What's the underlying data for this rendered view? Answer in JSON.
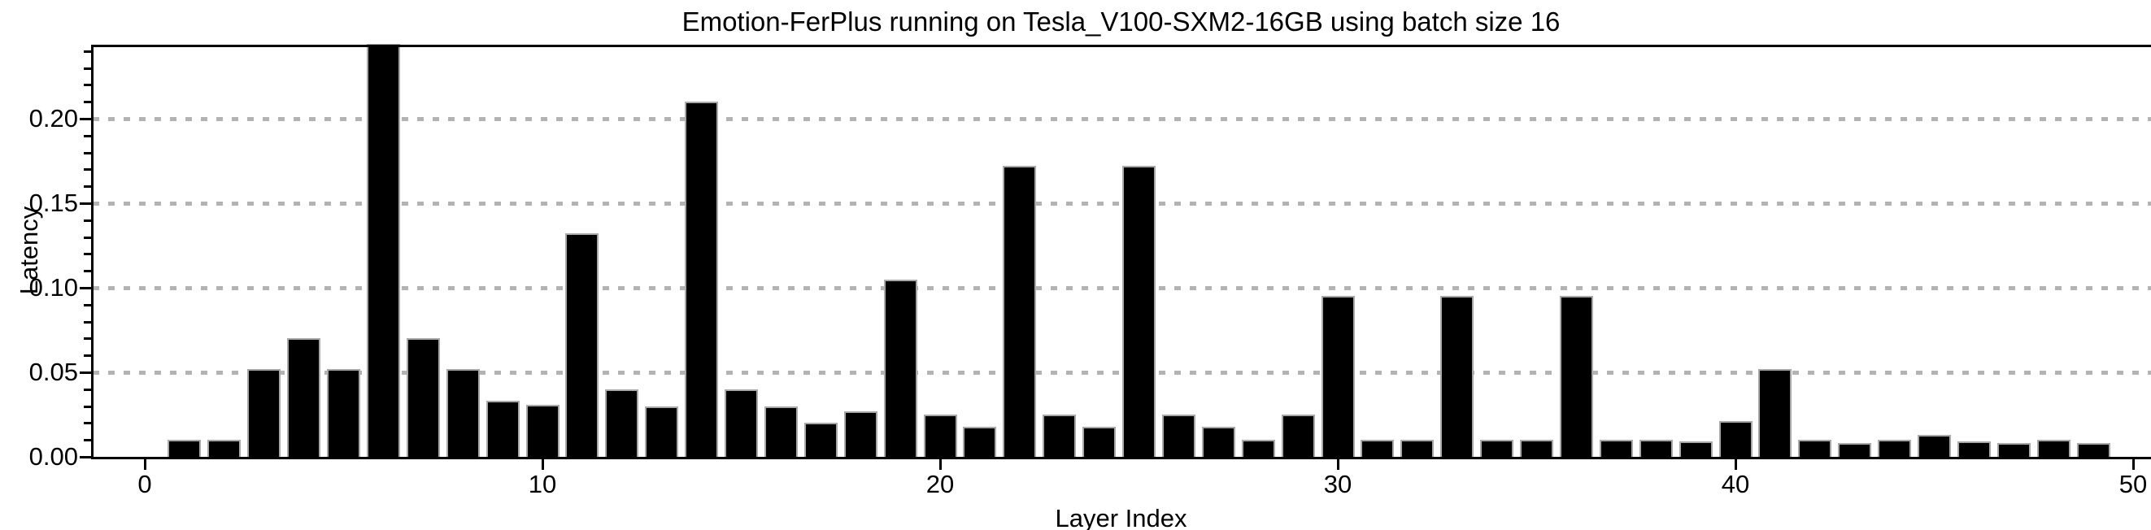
{
  "chart_data": {
    "type": "bar",
    "title": "Emotion-FerPlus running on Tesla_V100-SXM2-16GB using batch size 16",
    "xlabel": "Layer Index",
    "ylabel": "Latency",
    "x_start": 1,
    "x": [
      1,
      2,
      3,
      4,
      5,
      6,
      7,
      8,
      9,
      10,
      11,
      12,
      13,
      14,
      15,
      16,
      17,
      18,
      19,
      20,
      21,
      22,
      23,
      24,
      25,
      26,
      27,
      28,
      29,
      30,
      31,
      32,
      33,
      34,
      35,
      36,
      37,
      38,
      39,
      40,
      41,
      42,
      43,
      44,
      45,
      46,
      47,
      48,
      49
    ],
    "values": [
      0.01,
      0.01,
      0.052,
      0.07,
      0.052,
      0.244,
      0.07,
      0.052,
      0.033,
      0.031,
      0.132,
      0.04,
      0.03,
      0.21,
      0.04,
      0.03,
      0.02,
      0.027,
      0.105,
      0.025,
      0.018,
      0.172,
      0.025,
      0.018,
      0.172,
      0.025,
      0.018,
      0.01,
      0.025,
      0.095,
      0.01,
      0.01,
      0.095,
      0.01,
      0.01,
      0.095,
      0.01,
      0.01,
      0.009,
      0.021,
      0.052,
      0.01,
      0.008,
      0.01,
      0.013,
      0.009,
      0.008,
      0.01,
      0.008
    ],
    "xticks": [
      0,
      10,
      20,
      30,
      40,
      50
    ],
    "xtick_labels": [
      "0",
      "10",
      "20",
      "30",
      "40",
      "50"
    ],
    "yticks": [
      0.0,
      0.05,
      0.1,
      0.15,
      0.2
    ],
    "ytick_labels": [
      "0.00",
      "0.05",
      "0.10",
      "0.15",
      "0.20"
    ],
    "y_minor_tick_step": 0.01,
    "gridlines_at": [
      0.05,
      0.1,
      0.15,
      0.2
    ],
    "grid_style": "dotted",
    "legend": "none",
    "xlim": [
      -1.35,
      50.45
    ],
    "ylim": [
      0,
      0.244
    ],
    "colors": {
      "bar_fill": "#000000",
      "bar_edge": "#a8a8a8",
      "grid": "#b3b3b3",
      "axis": "#000000",
      "text": "#000000",
      "background": "#ffffff"
    }
  }
}
